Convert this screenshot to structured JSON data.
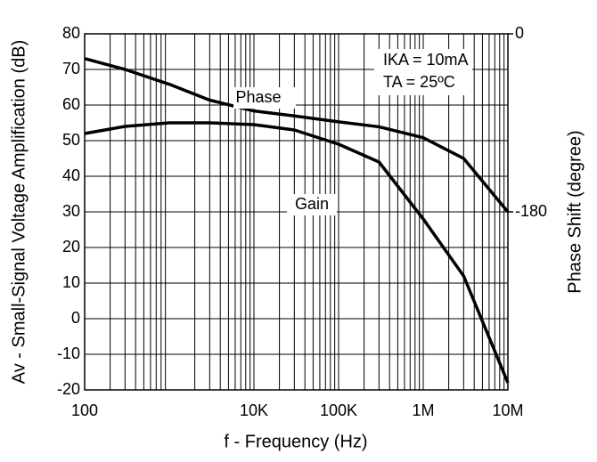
{
  "chart_data": {
    "type": "line",
    "y_label": "Av - Small-Signal Voltage Amplification (dB)",
    "y2_label": "Phase Shift (degree)",
    "x_label": "f - Frequency (Hz)",
    "annotations": [
      "Phase",
      "Gain",
      "IKA = 10mA",
      "TA = 25ºC"
    ],
    "x": [
      100,
      300,
      1000,
      3000,
      10000,
      30000,
      100000,
      300000,
      1000000,
      3000000,
      10000000
    ],
    "series": [
      {
        "name": "Gain",
        "color": "#000000",
        "axis": "y",
        "values": [
          52,
          54,
          55,
          55,
          54.5,
          53,
          49,
          44,
          28,
          12,
          -18
        ]
      },
      {
        "name": "Phase",
        "color": "#000000",
        "axis": "y2",
        "values": [
          -25,
          -36,
          -51,
          -67,
          -78,
          -83,
          -89,
          -94,
          -105,
          -126,
          -180
        ]
      }
    ],
    "x_log": true,
    "xlim": [
      100,
      10000000
    ],
    "xticks": [
      {
        "value": 100,
        "label": "100"
      },
      {
        "value": 10000,
        "label": "10K"
      },
      {
        "value": 100000,
        "label": "100K"
      },
      {
        "value": 1000000,
        "label": "1M"
      },
      {
        "value": 10000000,
        "label": "10M"
      }
    ],
    "ylim": [
      -20,
      80
    ],
    "yticks": [
      80,
      70,
      60,
      50,
      40,
      30,
      20,
      10,
      0,
      -10,
      -20
    ],
    "y2lim": [
      -360,
      0
    ],
    "y2ticks": [
      0,
      -180
    ],
    "grid": true
  }
}
